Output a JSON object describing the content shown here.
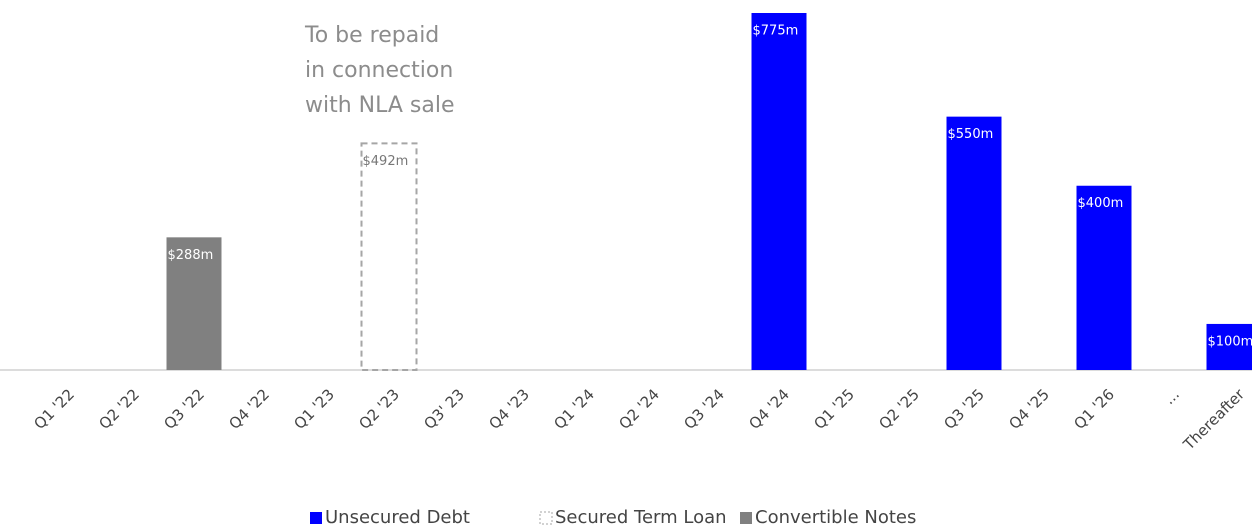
{
  "chart_data": {
    "type": "bar",
    "categories": [
      "Q1 '22",
      "Q2 '22",
      "Q3 '22",
      "Q4 '22",
      "Q1 '23",
      "Q2 '23",
      "Q3' 23",
      "Q4 '23",
      "Q1 '24",
      "Q2 '24",
      "Q3 '24",
      "Q4 '24",
      "Q1 '25",
      "Q2 '25",
      "Q3 '25",
      "Q4 '25",
      "Q1 '26",
      "...",
      "Thereafter"
    ],
    "series": [
      {
        "name": "Unsecured Debt",
        "color": "#0000ff",
        "values": [
          null,
          null,
          null,
          null,
          null,
          null,
          null,
          null,
          null,
          null,
          null,
          775,
          null,
          null,
          550,
          null,
          400,
          null,
          100
        ],
        "value_labels": [
          null,
          null,
          null,
          null,
          null,
          null,
          null,
          null,
          null,
          null,
          null,
          "$775m",
          null,
          null,
          "$550m",
          null,
          "$400m",
          null,
          "$100m"
        ]
      },
      {
        "name": "Secured Term Loan",
        "color": "#a6a6a6",
        "border": "dashed",
        "values": [
          null,
          null,
          null,
          null,
          null,
          492,
          null,
          null,
          null,
          null,
          null,
          null,
          null,
          null,
          null,
          null,
          null,
          null,
          null
        ],
        "value_labels": [
          null,
          null,
          null,
          null,
          null,
          "$492m",
          null,
          null,
          null,
          null,
          null,
          null,
          null,
          null,
          null,
          null,
          null,
          null,
          null
        ]
      },
      {
        "name": "Convertible Notes",
        "color": "#808080",
        "values": [
          null,
          null,
          288,
          null,
          null,
          null,
          null,
          null,
          null,
          null,
          null,
          null,
          null,
          null,
          null,
          null,
          null,
          null,
          null
        ],
        "value_labels": [
          null,
          null,
          "$288m",
          null,
          null,
          null,
          null,
          null,
          null,
          null,
          null,
          null,
          null,
          null,
          null,
          null,
          null,
          null,
          null
        ]
      }
    ],
    "annotation": [
      "To be repaid",
      "in connection",
      "with NLA sale"
    ],
    "ylim": [
      0,
      775
    ],
    "legend": "bottom"
  }
}
